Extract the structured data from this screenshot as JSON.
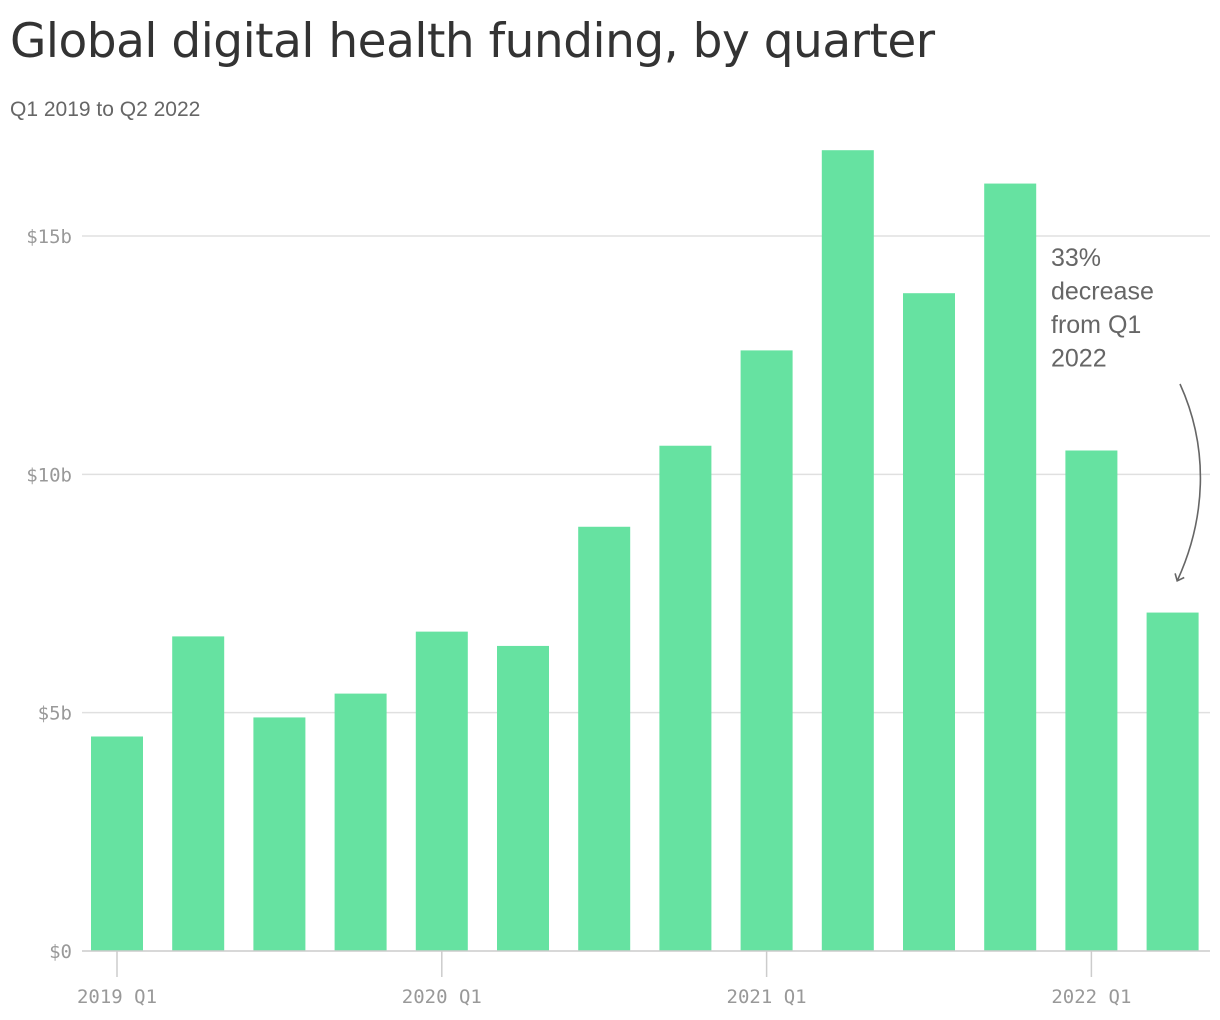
{
  "chart_data": {
    "type": "bar",
    "title": "Global digital health funding, by quarter",
    "subtitle": "Q1 2019 to Q2 2022",
    "categories": [
      "2019 Q1",
      "2019 Q2",
      "2019 Q3",
      "2019 Q4",
      "2020 Q1",
      "2020 Q2",
      "2020 Q3",
      "2020 Q4",
      "2021 Q1",
      "2021 Q2",
      "2021 Q3",
      "2021 Q4",
      "2022 Q1",
      "2022 Q2"
    ],
    "values": [
      4.5,
      6.6,
      4.9,
      5.4,
      6.7,
      6.4,
      8.9,
      10.6,
      12.6,
      16.8,
      13.8,
      16.1,
      10.5,
      7.1
    ],
    "unit": "billion USD",
    "ylim": [
      0,
      17
    ],
    "y_ticks": [
      {
        "value": 0,
        "label": "$0"
      },
      {
        "value": 5,
        "label": "$5b"
      },
      {
        "value": 10,
        "label": "$10b"
      },
      {
        "value": 15,
        "label": "$15b"
      }
    ],
    "x_ticks": [
      {
        "index": 0,
        "label": "2019 Q1"
      },
      {
        "index": 4,
        "label": "2020 Q1"
      },
      {
        "index": 8,
        "label": "2021 Q1"
      },
      {
        "index": 12,
        "label": "2022 Q1"
      }
    ],
    "grid": true,
    "colors": {
      "bar": "#66e2a1",
      "grid": "#e0e0e0",
      "axis": "#cccccc",
      "text": "#999999",
      "annotation": "#666666"
    },
    "annotation": {
      "lines": [
        "33%",
        "decrease",
        "from Q1",
        "2022"
      ],
      "target_index": 13
    }
  }
}
